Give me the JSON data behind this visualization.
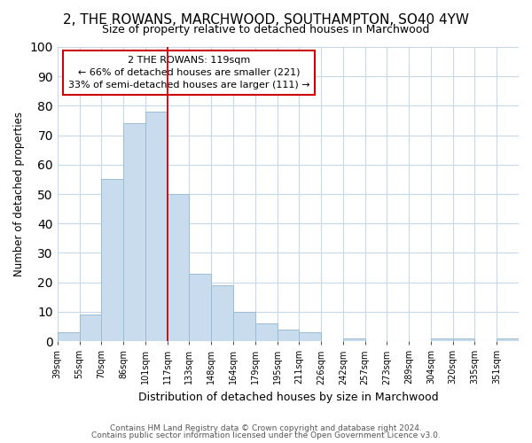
{
  "title1": "2, THE ROWANS, MARCHWOOD, SOUTHAMPTON, SO40 4YW",
  "title2": "Size of property relative to detached houses in Marchwood",
  "xlabel": "Distribution of detached houses by size in Marchwood",
  "ylabel": "Number of detached properties",
  "bins": [
    "39sqm",
    "55sqm",
    "70sqm",
    "86sqm",
    "101sqm",
    "117sqm",
    "133sqm",
    "148sqm",
    "164sqm",
    "179sqm",
    "195sqm",
    "211sqm",
    "226sqm",
    "242sqm",
    "257sqm",
    "273sqm",
    "289sqm",
    "304sqm",
    "320sqm",
    "335sqm",
    "351sqm"
  ],
  "values": [
    3,
    9,
    55,
    74,
    78,
    50,
    23,
    19,
    10,
    6,
    4,
    3,
    0,
    1,
    0,
    0,
    0,
    1,
    1,
    0,
    1
  ],
  "bar_color": "#c9dcee",
  "bar_edge_color": "#9bbdd4",
  "vline_x_index": 5,
  "vline_color": "#cc0000",
  "annotation_text": "2 THE ROWANS: 119sqm\n← 66% of detached houses are smaller (221)\n33% of semi-detached houses are larger (111) →",
  "annotation_box_color": "white",
  "annotation_box_edge_color": "#cc0000",
  "ylim": [
    0,
    100
  ],
  "footnote1": "Contains HM Land Registry data © Crown copyright and database right 2024.",
  "footnote2": "Contains public sector information licensed under the Open Government Licence v3.0.",
  "background_color": "white",
  "plot_background_color": "white",
  "grid_color": "#c8d8e8",
  "title1_fontsize": 11,
  "title2_fontsize": 9
}
